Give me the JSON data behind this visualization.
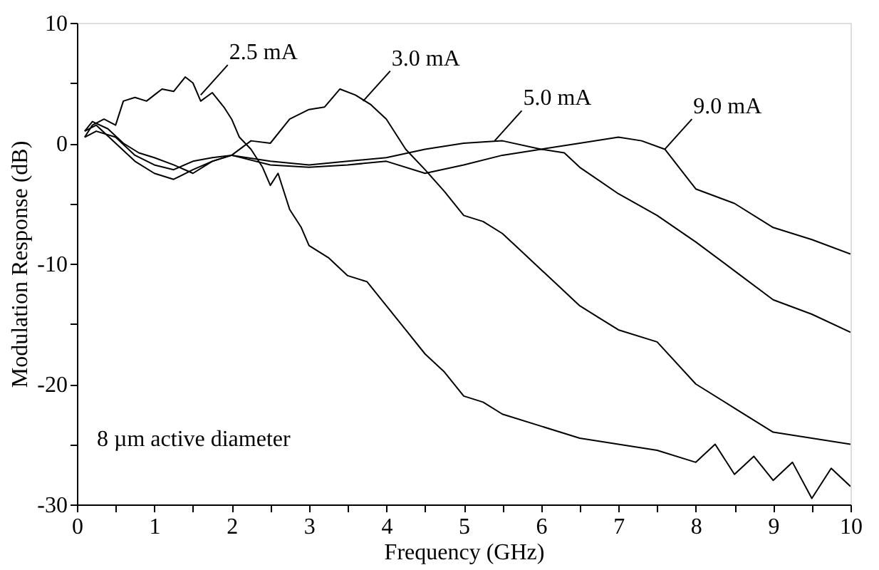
{
  "chart_data": {
    "type": "line",
    "xlabel": "Frequency (GHz)",
    "ylabel": "Modulation Response (dB)",
    "xlim": [
      0,
      10
    ],
    "ylim": [
      -30,
      10
    ],
    "xticks": [
      0,
      {
        "value": 0.5,
        "label": null
      },
      1,
      {
        "value": 1.5,
        "label": null
      },
      2,
      {
        "value": 2.5,
        "label": null
      },
      3,
      {
        "value": 3.5,
        "label": null
      },
      4,
      {
        "value": 4.5,
        "label": null
      },
      5,
      {
        "value": 5.5,
        "label": null
      },
      6,
      {
        "value": 6.5,
        "label": null
      },
      7,
      {
        "value": 7.5,
        "label": null
      },
      8,
      {
        "value": 8.5,
        "label": null
      },
      9,
      {
        "value": 9.5,
        "label": null
      },
      10
    ],
    "yticks": [
      -30,
      {
        "value": -25,
        "label": null
      },
      -20,
      {
        "value": -15,
        "label": null
      },
      -10,
      {
        "value": -5,
        "label": null
      },
      0,
      {
        "value": 5,
        "label": null
      },
      10
    ],
    "grid": false,
    "legend": false,
    "marker": "none",
    "line_style": "solid",
    "series": [
      {
        "color": "#000000",
        "x": [
          0.1,
          0.2,
          0.35,
          0.5,
          0.6,
          0.75,
          0.9,
          1.0,
          1.1,
          1.25,
          1.4,
          1.5,
          1.6,
          1.75,
          1.9,
          2.0,
          2.1,
          2.25,
          2.4,
          2.5,
          2.6,
          2.75,
          2.9,
          3.0,
          3.25,
          3.5,
          3.75,
          4.0,
          4.25,
          4.5,
          4.75,
          5.0,
          5.25,
          5.5,
          6.0,
          6.5,
          7.0,
          7.5,
          8.0,
          8.25,
          8.5,
          8.75,
          9.0,
          9.25,
          9.5,
          9.75,
          10.0
        ],
        "values": [
          0.5,
          1.5,
          2.0,
          1.5,
          3.5,
          3.8,
          3.5,
          4.0,
          4.5,
          4.3,
          5.5,
          5.0,
          3.5,
          4.2,
          3.0,
          2.0,
          0.5,
          -0.5,
          -2.0,
          -3.5,
          -2.5,
          -5.5,
          -7.0,
          -8.5,
          -9.5,
          -11.0,
          -11.5,
          -13.5,
          -15.5,
          -17.5,
          -19.0,
          -21.0,
          -21.5,
          -22.5,
          -23.5,
          -24.5,
          -25.0,
          -25.5,
          -26.5,
          -25.0,
          -27.5,
          -26.0,
          -28.0,
          -26.5,
          -29.5,
          -27.0,
          -28.5
        ]
      },
      {
        "color": "#000000",
        "x": [
          0.1,
          0.2,
          0.4,
          0.6,
          0.8,
          1.0,
          1.25,
          1.5,
          1.75,
          2.0,
          2.25,
          2.5,
          2.75,
          3.0,
          3.2,
          3.4,
          3.6,
          3.8,
          4.0,
          4.25,
          4.5,
          4.75,
          5.0,
          5.25,
          5.5,
          5.75,
          6.0,
          6.25,
          6.5,
          6.75,
          7.0,
          7.5,
          8.0,
          8.5,
          9.0,
          9.5,
          10.0
        ],
        "values": [
          1.0,
          1.8,
          1.2,
          0.0,
          -0.8,
          -1.2,
          -1.8,
          -2.5,
          -1.5,
          -1.0,
          0.2,
          0.0,
          2.0,
          2.8,
          3.0,
          4.5,
          4.0,
          3.2,
          2.0,
          -0.5,
          -2.2,
          -4.0,
          -6.0,
          -6.5,
          -7.5,
          -9.0,
          -10.5,
          -12.0,
          -13.5,
          -14.5,
          -15.5,
          -16.5,
          -20.0,
          -22.0,
          -24.0,
          -24.5,
          -25.0
        ]
      },
      {
        "color": "#000000",
        "x": [
          0.1,
          0.25,
          0.5,
          0.75,
          1.0,
          1.25,
          1.5,
          1.75,
          2.0,
          2.5,
          3.0,
          3.5,
          4.0,
          4.5,
          5.0,
          5.5,
          6.0,
          6.3,
          6.5,
          7.0,
          7.5,
          8.0,
          8.5,
          9.0,
          9.5,
          10.0
        ],
        "values": [
          1.0,
          1.5,
          0.0,
          -1.5,
          -2.5,
          -3.0,
          -2.2,
          -1.5,
          -1.0,
          -1.5,
          -1.8,
          -1.5,
          -1.2,
          -0.5,
          0.0,
          0.2,
          -0.5,
          -0.8,
          -2.0,
          -4.2,
          -6.0,
          -8.2,
          -10.6,
          -13.0,
          -14.2,
          -15.7
        ]
      },
      {
        "color": "#000000",
        "x": [
          0.1,
          0.25,
          0.5,
          0.75,
          1.0,
          1.25,
          1.5,
          1.75,
          2.0,
          2.5,
          3.0,
          3.5,
          4.0,
          4.5,
          5.0,
          5.5,
          6.0,
          6.5,
          7.0,
          7.3,
          7.6,
          8.0,
          8.5,
          9.0,
          9.5,
          10.0
        ],
        "values": [
          0.5,
          1.0,
          0.5,
          -1.0,
          -1.8,
          -2.2,
          -1.5,
          -1.2,
          -1.0,
          -1.8,
          -2.0,
          -1.8,
          -1.5,
          -2.5,
          -1.8,
          -1.0,
          -0.5,
          0.0,
          0.5,
          0.2,
          -0.5,
          -3.8,
          -5.0,
          -7.0,
          -8.0,
          -9.2
        ]
      }
    ],
    "annotations": [
      {
        "text": "2.5 mA",
        "x": 1.6,
        "y": 4.0
      },
      {
        "text": "3.0 mA",
        "x": 3.7,
        "y": 3.5
      },
      {
        "text": "5.0 mA",
        "x": 5.4,
        "y": 0.2
      },
      {
        "text": "9.0 mA",
        "x": 7.6,
        "y": -0.5
      },
      "8 µm active diameter"
    ]
  }
}
